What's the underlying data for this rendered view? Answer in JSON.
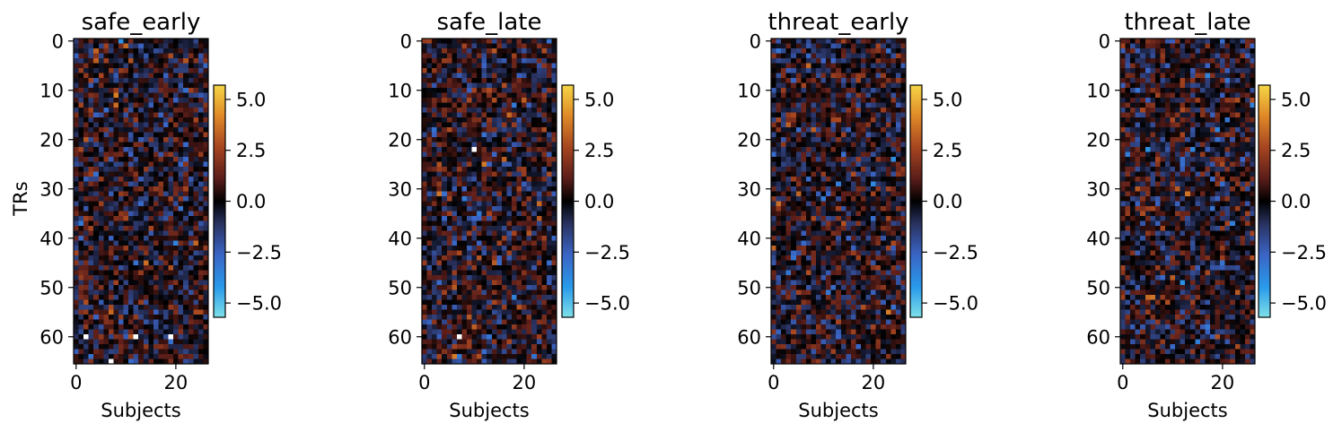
{
  "chart_data": [
    {
      "type": "heatmap",
      "title": "safe_early",
      "xlabel": "Subjects",
      "ylabel": "TRs",
      "n_cols": 27,
      "n_rows": 66,
      "xlim": [
        -0.5,
        26.5
      ],
      "ylim": [
        65.5,
        -0.5
      ],
      "xticks": [
        0,
        20
      ],
      "yticks": [
        0,
        10,
        20,
        30,
        40,
        50,
        60
      ],
      "colorbar": {
        "vmin": -5.7,
        "vmax": 5.7,
        "ticks": [
          -5.0,
          -2.5,
          0.0,
          2.5,
          5.0
        ],
        "tick_labels": [
          "−5.0",
          "−2.5",
          "0.0",
          "2.5",
          "5.0"
        ]
      },
      "seed": 11,
      "max_cells": [
        [
          2,
          60
        ],
        [
          12,
          60
        ],
        [
          19,
          60
        ],
        [
          7,
          65
        ]
      ]
    },
    {
      "type": "heatmap",
      "title": "safe_late",
      "xlabel": "Subjects",
      "ylabel": "",
      "n_cols": 27,
      "n_rows": 66,
      "xlim": [
        -0.5,
        26.5
      ],
      "ylim": [
        65.5,
        -0.5
      ],
      "xticks": [
        0,
        20
      ],
      "yticks": [
        0,
        10,
        20,
        30,
        40,
        50,
        60
      ],
      "colorbar": {
        "vmin": -5.7,
        "vmax": 5.7,
        "ticks": [
          -5.0,
          -2.5,
          0.0,
          2.5,
          5.0
        ],
        "tick_labels": [
          "−5.0",
          "−2.5",
          "0.0",
          "2.5",
          "5.0"
        ]
      },
      "seed": 23,
      "max_cells": [
        [
          7,
          60
        ],
        [
          10,
          22
        ]
      ]
    },
    {
      "type": "heatmap",
      "title": "threat_early",
      "xlabel": "Subjects",
      "ylabel": "",
      "n_cols": 27,
      "n_rows": 66,
      "xlim": [
        -0.5,
        26.5
      ],
      "ylim": [
        65.5,
        -0.5
      ],
      "xticks": [
        0,
        20
      ],
      "yticks": [
        0,
        10,
        20,
        30,
        40,
        50,
        60
      ],
      "colorbar": {
        "vmin": -5.7,
        "vmax": 5.7,
        "ticks": [
          -5.0,
          -2.5,
          0.0,
          2.5,
          5.0
        ],
        "tick_labels": [
          "−5.0",
          "−2.5",
          "0.0",
          "2.5",
          "5.0"
        ]
      },
      "seed": 37,
      "max_cells": []
    },
    {
      "type": "heatmap",
      "title": "threat_late",
      "xlabel": "Subjects",
      "ylabel": "",
      "n_cols": 27,
      "n_rows": 66,
      "xlim": [
        -0.5,
        26.5
      ],
      "ylim": [
        65.5,
        -0.5
      ],
      "xticks": [
        0,
        20
      ],
      "yticks": [
        0,
        10,
        20,
        30,
        40,
        50,
        60
      ],
      "colorbar": {
        "vmin": -5.7,
        "vmax": 5.7,
        "ticks": [
          -5.0,
          -2.5,
          0.0,
          2.5,
          5.0
        ],
        "tick_labels": [
          "−5.0",
          "−2.5",
          "0.0",
          "2.5",
          "5.0"
        ]
      },
      "seed": 53,
      "max_cells": []
    }
  ]
}
